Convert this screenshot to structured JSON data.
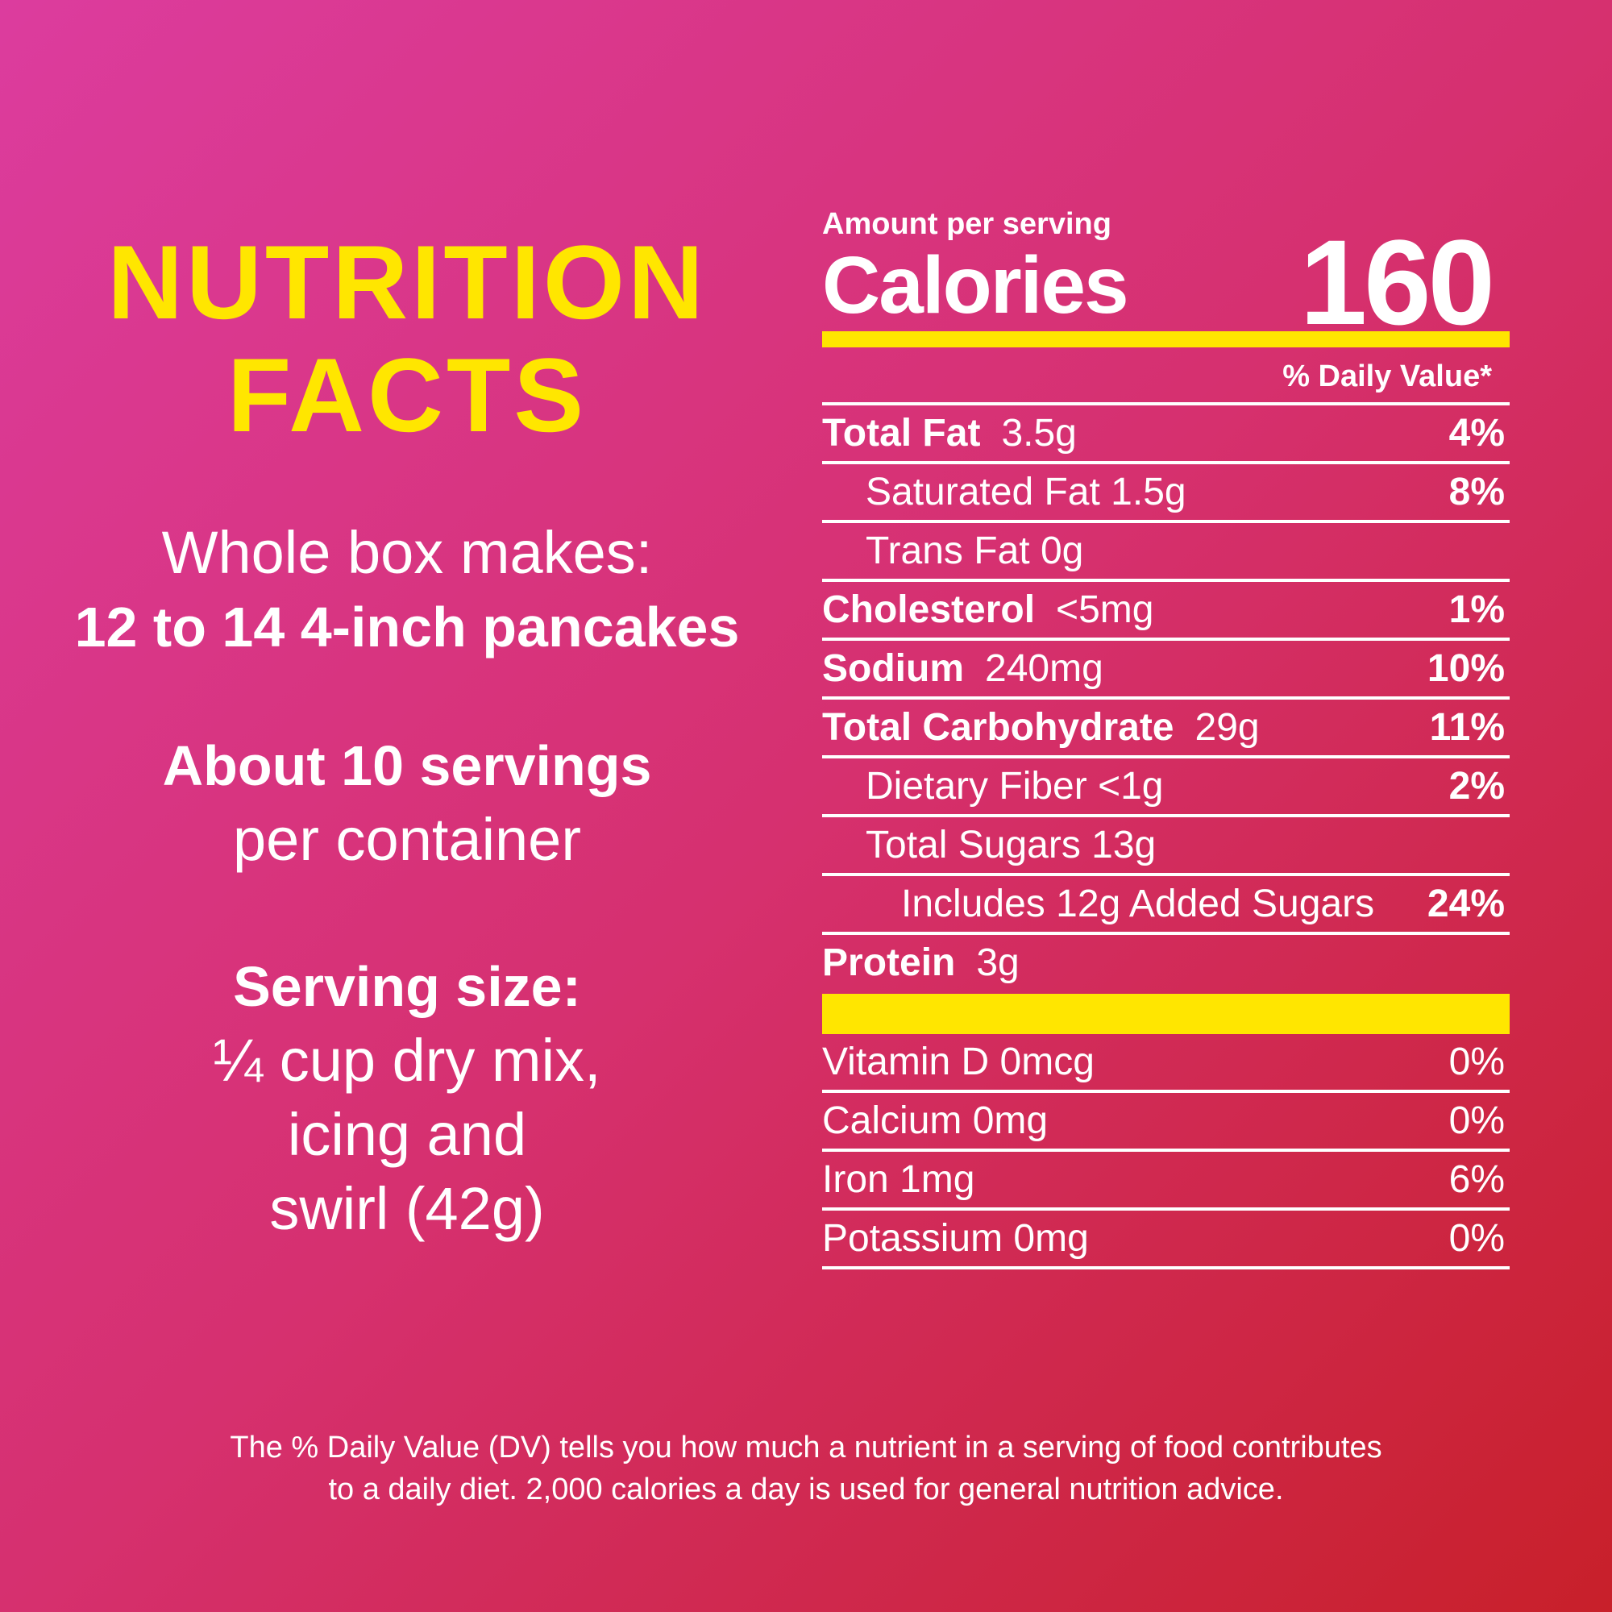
{
  "left": {
    "title_line1": "NUTRITION",
    "title_line2": "FACTS",
    "makes_label": "Whole box makes:",
    "makes_value": "12 to 14 4-inch pancakes",
    "servings_count": "About 10 servings",
    "servings_per": "per container",
    "serving_size_label": "Serving size:",
    "serving_size_line1": "¼ cup dry mix,",
    "serving_size_line2": "icing and",
    "serving_size_line3": "swirl (42g)"
  },
  "panel": {
    "amount_label": "Amount per serving",
    "calories_label": "Calories",
    "calories_value": "160",
    "dv_header": "% Daily Value*",
    "nutrients": [
      {
        "name": "Total Fat",
        "amount": "3.5g",
        "pct": "4%"
      },
      {
        "name": "Saturated Fat 1.5g",
        "pct": "8%"
      },
      {
        "name": "Trans Fat 0g",
        "pct": ""
      },
      {
        "name": "Cholesterol",
        "amount": "<5mg",
        "pct": "1%"
      },
      {
        "name": "Sodium",
        "amount": "240mg",
        "pct": "10%"
      },
      {
        "name": "Total Carbohydrate",
        "amount": "29g",
        "pct": "11%"
      },
      {
        "name": "Dietary Fiber <1g",
        "pct": "2%"
      },
      {
        "name": "Total Sugars 13g",
        "pct": ""
      },
      {
        "name": "Includes 12g Added Sugars",
        "pct": "24%"
      },
      {
        "name": "Protein",
        "amount": "3g",
        "pct": ""
      }
    ],
    "vitamins": [
      {
        "name": "Vitamin D 0mcg",
        "pct": "0%"
      },
      {
        "name": "Calcium 0mg",
        "pct": "0%"
      },
      {
        "name": "Iron 1mg",
        "pct": "6%"
      },
      {
        "name": "Potassium 0mg",
        "pct": "0%"
      }
    ]
  },
  "footnote": {
    "line1": "The % Daily Value (DV) tells you how much a nutrient in a serving of food contributes",
    "line2": "to a daily diet. 2,000 calories a day is used for general nutrition advice."
  },
  "colors": {
    "accent_yellow": "#ffe600",
    "text_white": "#ffffff",
    "bg_pink": "#dc3c9e",
    "bg_red": "#c8202a"
  }
}
